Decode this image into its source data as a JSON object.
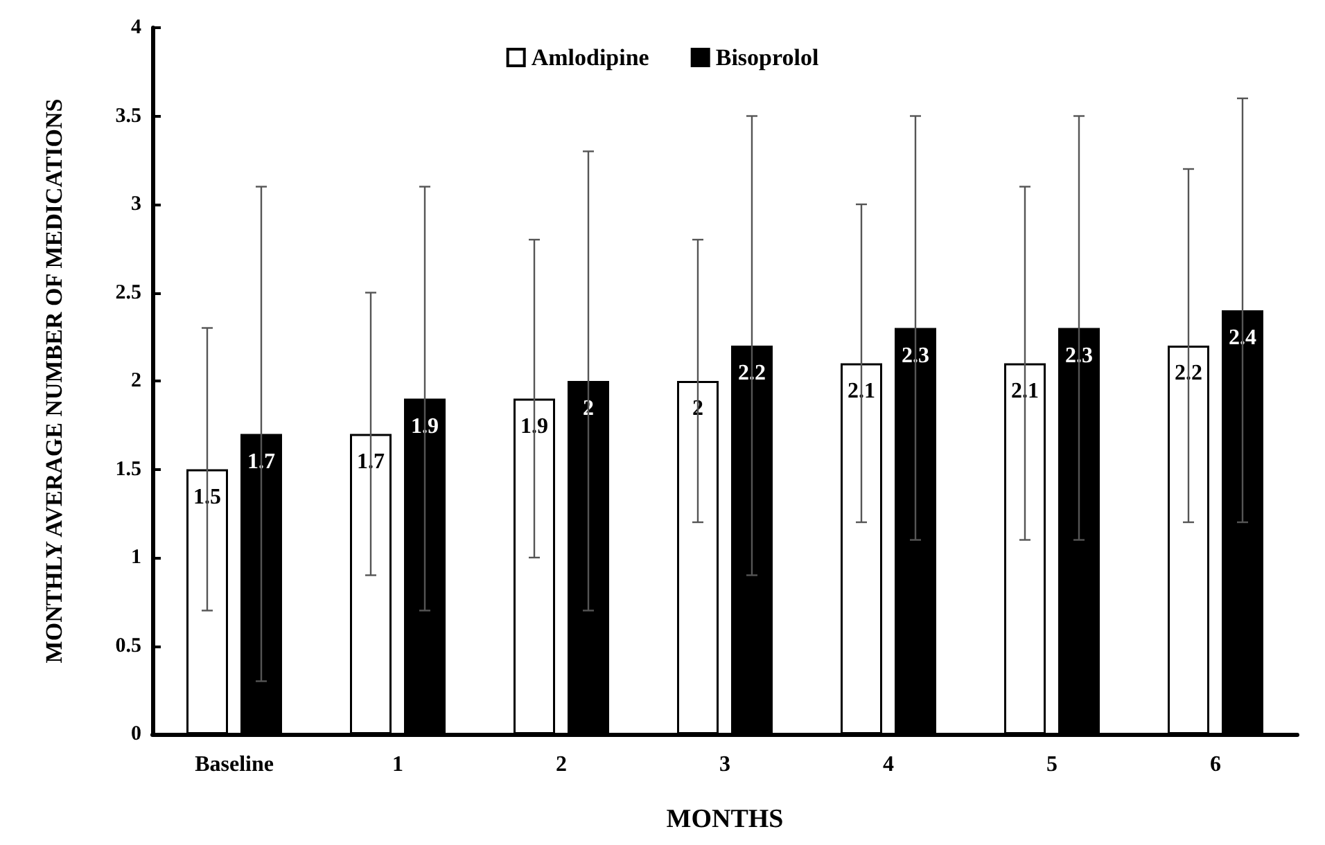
{
  "chart_data": {
    "type": "bar",
    "xlabel": "MONTHS",
    "ylabel": "MONTHLY AVERAGE NUMBER OF MEDICATIONS",
    "categories": [
      "Baseline",
      "1",
      "2",
      "3",
      "4",
      "5",
      "6"
    ],
    "series": [
      {
        "name": "Amlodipine",
        "color": "#ffffff",
        "values": [
          1.5,
          1.7,
          1.9,
          2,
          2.1,
          2.1,
          2.2
        ],
        "errors": [
          [
            0.7,
            2.3
          ],
          [
            0.9,
            2.5
          ],
          [
            1.0,
            2.8
          ],
          [
            1.2,
            2.8
          ],
          [
            1.2,
            3.0
          ],
          [
            1.1,
            3.1
          ],
          [
            1.2,
            3.2
          ]
        ]
      },
      {
        "name": "Bisoprolol",
        "color": "#000000",
        "values": [
          1.7,
          1.9,
          2,
          2.2,
          2.3,
          2.3,
          2.4
        ],
        "errors": [
          [
            0.3,
            3.1
          ],
          [
            0.7,
            3.1
          ],
          [
            0.7,
            3.3
          ],
          [
            0.9,
            3.5
          ],
          [
            1.1,
            3.5
          ],
          [
            1.1,
            3.5
          ],
          [
            1.2,
            3.6
          ]
        ]
      }
    ],
    "ylim": [
      0,
      4
    ],
    "yticks": [
      0,
      0.5,
      1,
      1.5,
      2,
      2.5,
      3,
      3.5,
      4
    ],
    "grid": false,
    "legend": "top",
    "data_labels": true
  }
}
